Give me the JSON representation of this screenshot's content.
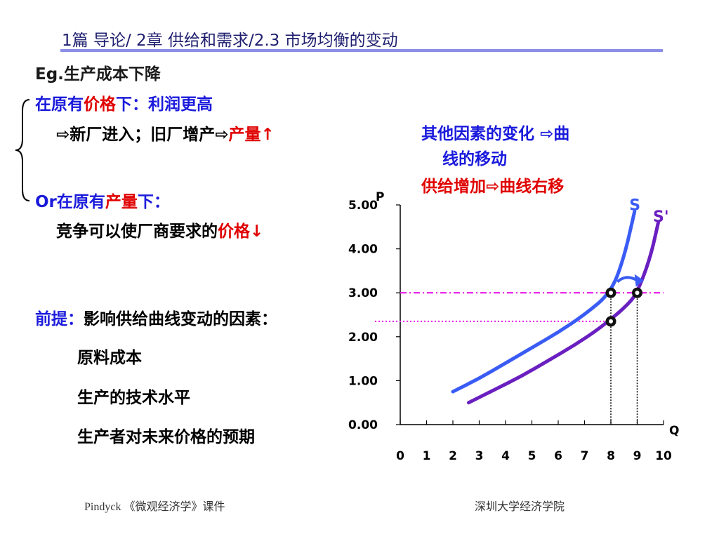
{
  "header": {
    "title": "1篇 导论/ 2章 供给和需求/2.3 市场均衡的变动"
  },
  "left": {
    "eg": "Eg.生产成本下降",
    "para1": {
      "a": "在原有",
      "b": "价格",
      "c": "下：利润更高"
    },
    "para1b": {
      "a": "⇨新厂进入；旧厂增产⇨",
      "b": "产量",
      "c": "↑"
    },
    "para2": {
      "a": "Or在原有",
      "b": "产量",
      "c": "下："
    },
    "para2b": {
      "a": "竞争可以使厂商要求的",
      "b": "价格",
      "c": "↓"
    },
    "premise": {
      "a": "前提：",
      "b": "影响供给曲线变动的因素："
    },
    "factors": [
      "原料成本",
      "生产的技术水平",
      "生产者对未来价格的预期"
    ]
  },
  "notes": {
    "line1": "其他因素的变化 ⇨曲",
    "line1b": "线的移动",
    "line2": "供给增加⇨曲线右移"
  },
  "colors": {
    "blue": "#1a1adc",
    "red": "#e00000",
    "s_curve": "#3a5cf5",
    "s2_curve": "#6a1fc0",
    "magenta": "#e81ae8"
  },
  "chart_data": {
    "type": "line",
    "xlabel": "Q",
    "ylabel": "P",
    "xlim": [
      0,
      10
    ],
    "ylim": [
      0,
      5
    ],
    "x_ticks": [
      "0",
      "1",
      "2",
      "3",
      "4",
      "5",
      "6",
      "7",
      "8",
      "9",
      "10"
    ],
    "y_ticks": [
      "0.00",
      "1.00",
      "2.00",
      "3.00",
      "4.00",
      "5.00"
    ],
    "series": [
      {
        "name": "S",
        "x": [
          2,
          3,
          4,
          5,
          6,
          7,
          8,
          8.5,
          8.9
        ],
        "y": [
          0.75,
          1.05,
          1.4,
          1.75,
          2.1,
          2.5,
          3.0,
          3.8,
          4.85
        ]
      },
      {
        "name": "S'",
        "x": [
          2.6,
          3.6,
          4.6,
          5.6,
          6.6,
          7.6,
          8.6,
          9,
          9.5,
          9.8
        ],
        "y": [
          0.5,
          0.8,
          1.1,
          1.45,
          1.8,
          2.2,
          2.7,
          3.0,
          3.8,
          4.6
        ]
      }
    ],
    "points": [
      {
        "x": 8,
        "y": 3.0
      },
      {
        "x": 9,
        "y": 3.0
      },
      {
        "x": 8,
        "y": 2.35
      }
    ],
    "hlines": [
      3.0,
      2.35
    ],
    "vlines": [
      8,
      9
    ]
  },
  "footer": {
    "left": "Pindyck 《微观经济学》课件",
    "right": "深圳大学经济学院"
  }
}
